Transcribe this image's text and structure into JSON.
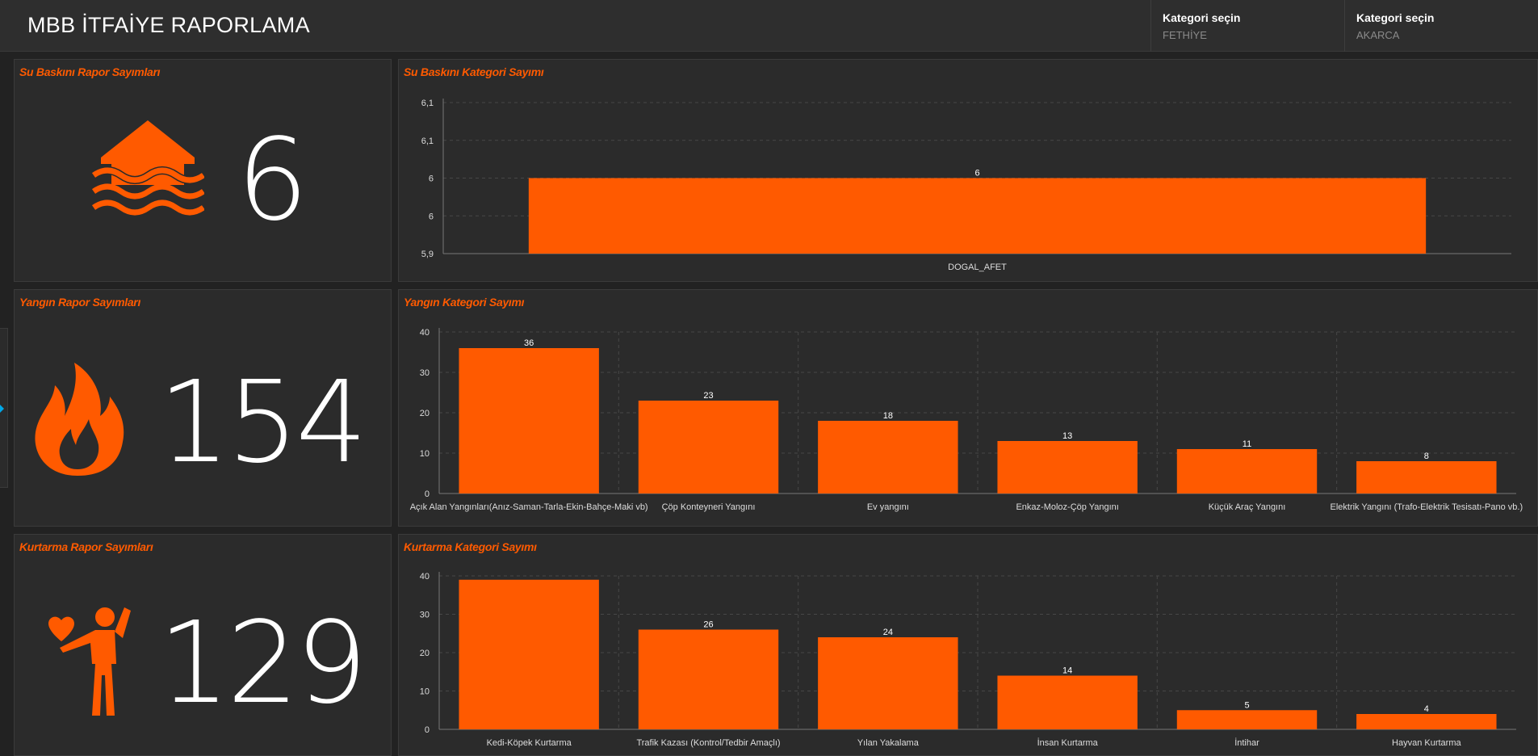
{
  "header": {
    "title": "MBB İTFAİYE RAPORLAMA",
    "selectors": [
      {
        "label": "Kategori seçin",
        "value": "FETHİYE"
      },
      {
        "label": "Kategori seçin",
        "value": "AKARCA"
      }
    ]
  },
  "colors": {
    "accent": "#ff5a00",
    "background": "#222222",
    "panel": "#2b2b2b"
  },
  "kpis": [
    {
      "title": "Su Baskını Rapor Sayımları",
      "value": "6",
      "icon": "flood-house-icon"
    },
    {
      "title": "Yangın Rapor Sayımları",
      "value": "154",
      "icon": "fire-icon"
    },
    {
      "title": "Kurtarma Rapor Sayımları",
      "value": "129",
      "icon": "rescue-person-icon"
    }
  ],
  "chart_data": [
    {
      "type": "bar",
      "title": "Su Baskını Kategori Sayımı",
      "categories": [
        "DOGAL_AFET"
      ],
      "values": [
        6
      ],
      "data_labels": [
        "6"
      ],
      "ytick_labels": [
        "5,9",
        "6",
        "6",
        "6,1",
        "6,1"
      ],
      "ylim": [
        5.9,
        6.1
      ],
      "grid": true
    },
    {
      "type": "bar",
      "title": "Yangın Kategori Sayımı",
      "categories": [
        "Açık Alan Yangınları(Anız-Saman-Tarla-Ekin-Bahçe-Maki vb)",
        "Çöp Konteyneri Yangını",
        "Ev yangını",
        "Enkaz-Moloz-Çöp Yangını",
        "Küçük Araç Yangını",
        "Elektrik Yangını (Trafo-Elektrik Tesisatı-Pano vb.)"
      ],
      "values": [
        36,
        23,
        18,
        13,
        11,
        8
      ],
      "data_labels": [
        "36",
        "23",
        "18",
        "13",
        "11",
        "8"
      ],
      "ytick_labels": [
        "0",
        "10",
        "20",
        "30",
        "40"
      ],
      "ylim": [
        0,
        40
      ],
      "grid": true
    },
    {
      "type": "bar",
      "title": "Kurtarma Kategori Sayımı",
      "categories": [
        "Kedi-Köpek Kurtarma",
        "Trafik Kazası (Kontrol/Tedbir Amaçlı)",
        "Yılan Yakalama",
        "İnsan Kurtarma",
        "İntihar",
        "Hayvan Kurtarma"
      ],
      "values": [
        39,
        26,
        24,
        14,
        5,
        4
      ],
      "data_labels": [
        "",
        "26",
        "24",
        "14",
        "5",
        "4"
      ],
      "ytick_labels": [
        "0",
        "10",
        "20",
        "30",
        "40"
      ],
      "ylim": [
        0,
        40
      ],
      "grid": true
    }
  ]
}
